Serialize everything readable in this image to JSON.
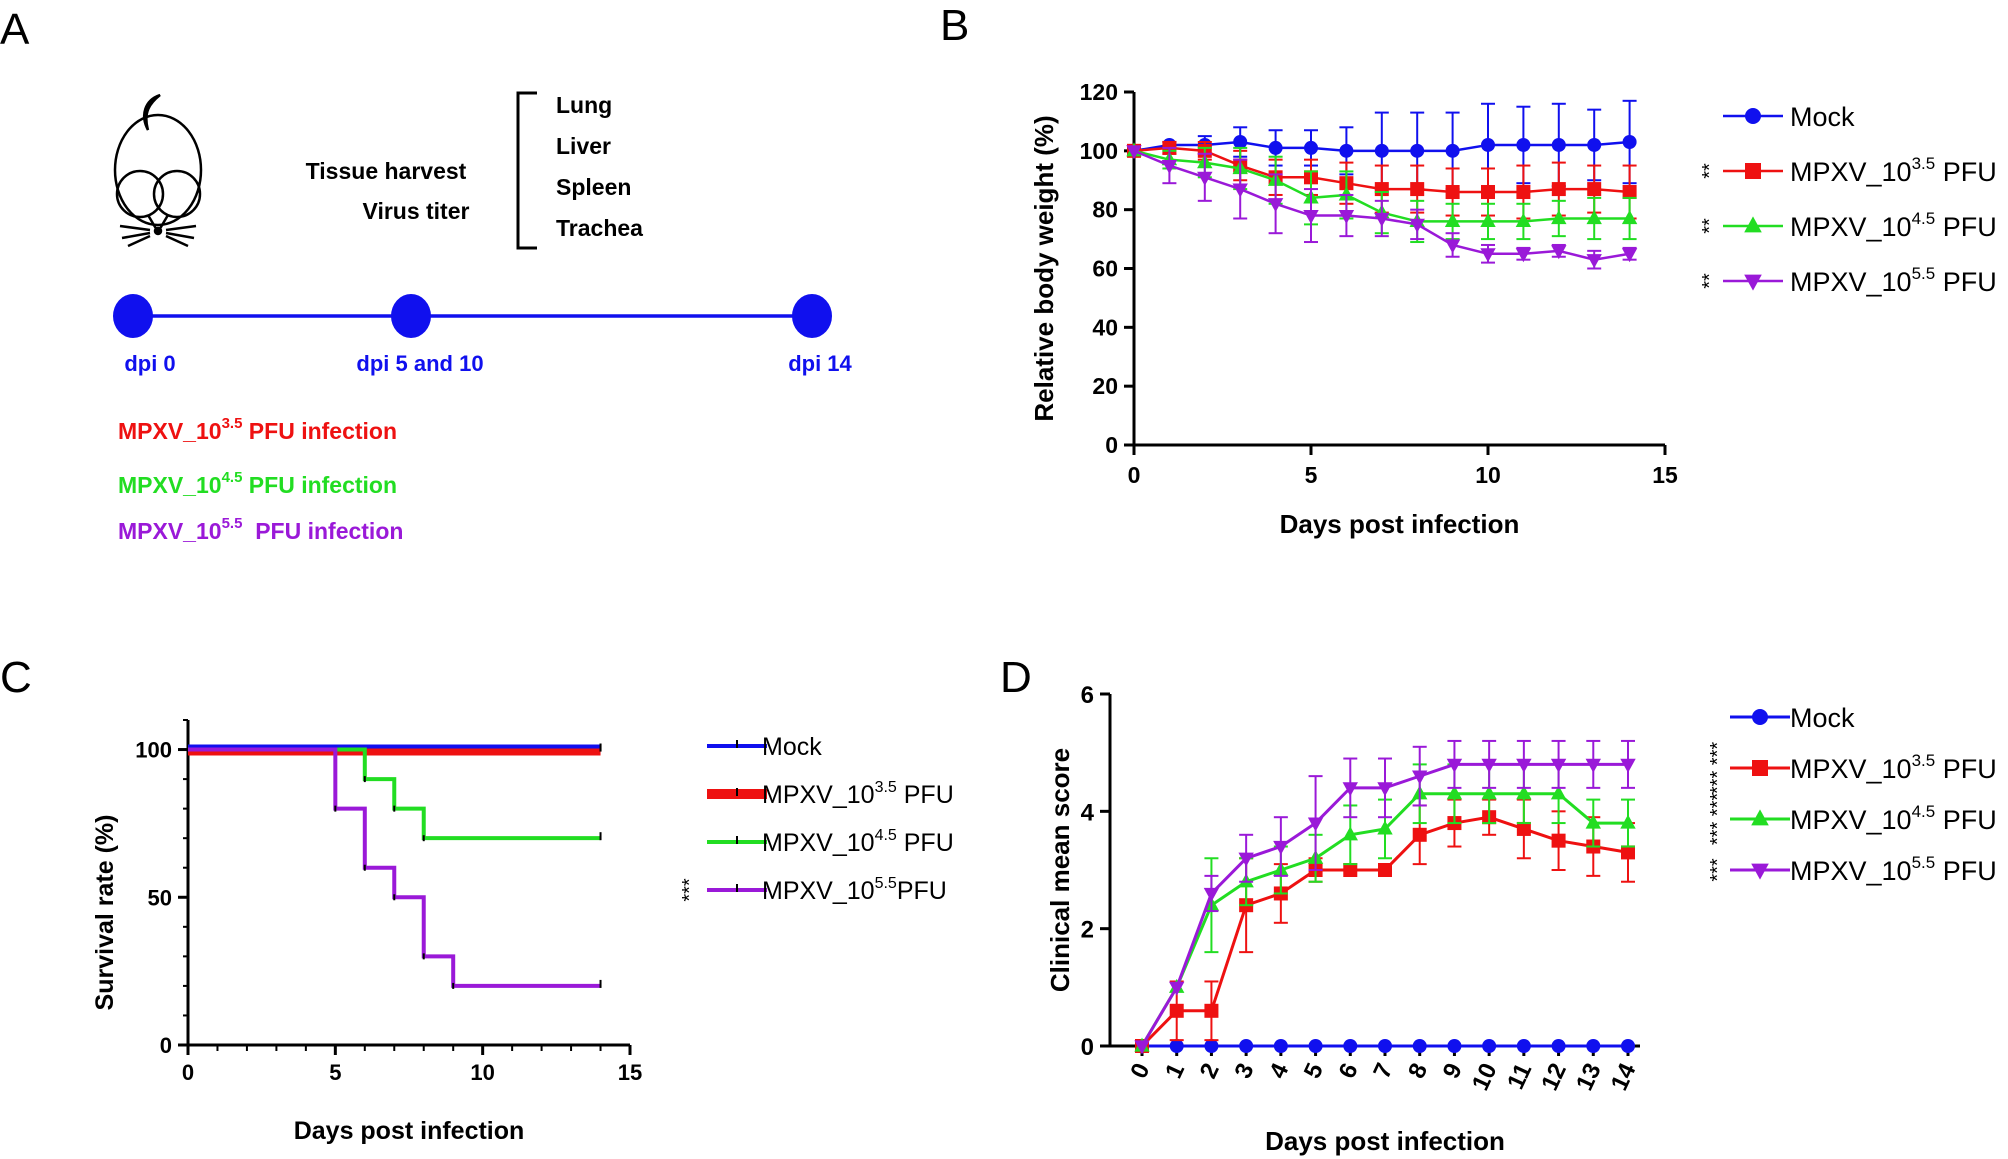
{
  "colors": {
    "mock": "#1010ee",
    "low": "#ee1111",
    "mid": "#22dd22",
    "high": "#9a19d8",
    "black": "#000000"
  },
  "panelA": {
    "letter": "A",
    "harvest_label_1": "Tissue harvest",
    "harvest_label_2": "Virus titer",
    "tissues": [
      "Lung",
      "Liver",
      "Spleen",
      "Trachea"
    ],
    "timepoints": [
      "dpi 0",
      "dpi 5 and 10",
      "dpi 14"
    ],
    "infections": [
      {
        "prefix": "MPXV_10",
        "exp": "3.5",
        "suffix": " PFU infection",
        "color": "#ee1111"
      },
      {
        "prefix": "MPXV_10",
        "exp": "4.5",
        "suffix": " PFU infection",
        "color": "#22dd22"
      },
      {
        "prefix": "MPXV_10",
        "exp": "5.5",
        "suffix": "  PFU infection",
        "color": "#9a19d8"
      }
    ]
  },
  "chart_data": [
    {
      "panel": "B",
      "type": "line",
      "xlabel": "Days post infection",
      "ylabel": "Relative body weight (%)",
      "xlim": [
        0,
        15
      ],
      "ylim": [
        0,
        120
      ],
      "xticks": [
        0,
        5,
        10,
        15
      ],
      "yticks": [
        0,
        20,
        40,
        60,
        80,
        100,
        120
      ],
      "x": [
        0,
        1,
        2,
        3,
        4,
        5,
        6,
        7,
        8,
        9,
        10,
        11,
        12,
        13,
        14
      ],
      "series": [
        {
          "name": "Mock",
          "label_prefix": "Mock",
          "label_exp": "",
          "label_suffix": "",
          "sig": "",
          "color": "#1010ee",
          "marker": "circle",
          "values": [
            100,
            102,
            102,
            103,
            101,
            101,
            100,
            100,
            100,
            100,
            102,
            102,
            102,
            102,
            103
          ],
          "errors": [
            0,
            1,
            3,
            5,
            6,
            6,
            8,
            13,
            13,
            13,
            14,
            13,
            14,
            12,
            14
          ]
        },
        {
          "name": "MPXV_10^3.5 PFU",
          "label_prefix": "MPXV_10",
          "label_exp": "3.5",
          "label_suffix": " PFU",
          "sig": "**",
          "color": "#ee1111",
          "marker": "square",
          "values": [
            100,
            101,
            100,
            95,
            91,
            91,
            89,
            87,
            87,
            86,
            86,
            86,
            87,
            87,
            86
          ],
          "errors": [
            0,
            2,
            3,
            5,
            6,
            6,
            7,
            8,
            8,
            8,
            8,
            9,
            9,
            8,
            9
          ]
        },
        {
          "name": "MPXV_10^4.5 PFU",
          "label_prefix": "MPXV_10",
          "label_exp": "4.5",
          "label_suffix": " PFU",
          "sig": "**",
          "color": "#22dd22",
          "marker": "triangle",
          "values": [
            100,
            97,
            96,
            94,
            90,
            84,
            85,
            79,
            76,
            76,
            76,
            76,
            77,
            77,
            77
          ],
          "errors": [
            0,
            3,
            5,
            7,
            8,
            9,
            8,
            7,
            7,
            6,
            6,
            6,
            6,
            7,
            7
          ]
        },
        {
          "name": "MPXV_10^5.5 PFU",
          "label_prefix": "MPXV_10",
          "label_exp": "5.5",
          "label_suffix": " PFU",
          "sig": "**",
          "color": "#9a19d8",
          "marker": "triangle-down",
          "values": [
            100,
            95,
            91,
            87,
            82,
            78,
            78,
            77,
            75,
            68,
            65,
            65,
            66,
            63,
            65
          ],
          "errors": [
            0,
            6,
            8,
            10,
            10,
            9,
            7,
            6,
            5,
            4,
            3,
            2,
            2,
            3,
            2
          ]
        }
      ]
    },
    {
      "panel": "C",
      "type": "line",
      "subtype": "step",
      "xlabel": "Days post infection",
      "ylabel": "Survival rate (%)",
      "xlim": [
        0,
        15
      ],
      "ylim": [
        0,
        100
      ],
      "xticks": [
        0,
        5,
        10,
        15
      ],
      "yticks": [
        0,
        50,
        100
      ],
      "series": [
        {
          "name": "Mock",
          "label_prefix": "Mock",
          "label_exp": "",
          "label_suffix": "",
          "sig": "",
          "color": "#1010ee",
          "x": [
            0,
            14
          ],
          "values": [
            100,
            100
          ]
        },
        {
          "name": "MPXV_10^3.5 PFU",
          "label_prefix": "MPXV_10",
          "label_exp": "3.5",
          "label_suffix": " PFU",
          "sig": "",
          "color": "#ee1111",
          "x": [
            0,
            14
          ],
          "values": [
            100,
            100
          ]
        },
        {
          "name": "MPXV_10^4.5 PFU",
          "label_prefix": "MPXV_10",
          "label_exp": "4.5",
          "label_suffix": " PFU",
          "sig": "",
          "color": "#22dd22",
          "x": [
            0,
            6,
            7,
            8,
            14
          ],
          "values": [
            100,
            90,
            80,
            70,
            70
          ]
        },
        {
          "name": "MPXV_10^5.5PFU",
          "label_prefix": "MPXV_10",
          "label_exp": "5.5",
          "label_suffix": "PFU",
          "sig": "***",
          "color": "#9a19d8",
          "x": [
            0,
            5,
            6,
            7,
            8,
            9,
            14
          ],
          "values": [
            100,
            80,
            60,
            50,
            30,
            20,
            20
          ]
        }
      ]
    },
    {
      "panel": "D",
      "type": "line",
      "xlabel": "Days post infection",
      "ylabel": "Clinical mean score",
      "xlim": [
        0,
        14
      ],
      "ylim": [
        0,
        6
      ],
      "xticks": [
        0,
        1,
        2,
        3,
        4,
        5,
        6,
        7,
        8,
        9,
        10,
        11,
        12,
        13,
        14
      ],
      "yticks": [
        0,
        2,
        4,
        6
      ],
      "x": [
        0,
        1,
        2,
        3,
        4,
        5,
        6,
        7,
        8,
        9,
        10,
        11,
        12,
        13,
        14
      ],
      "series": [
        {
          "name": "Mock",
          "label_prefix": "Mock",
          "label_exp": "",
          "label_suffix": "",
          "sig": "",
          "color": "#1010ee",
          "marker": "circle",
          "values": [
            0,
            0,
            0,
            0,
            0,
            0,
            0,
            0,
            0,
            0,
            0,
            0,
            0,
            0,
            0
          ],
          "errors": [
            0,
            0,
            0,
            0,
            0,
            0,
            0,
            0,
            0,
            0,
            0,
            0,
            0,
            0,
            0
          ]
        },
        {
          "name": "MPXV_10^3.5 PFU",
          "label_prefix": "MPXV_10",
          "label_exp": "3.5",
          "label_suffix": " PFU",
          "sig": "*** ***",
          "color": "#ee1111",
          "marker": "square",
          "values": [
            0,
            0.6,
            0.6,
            2.4,
            2.6,
            3.0,
            3.0,
            3.0,
            3.6,
            3.8,
            3.9,
            3.7,
            3.5,
            3.4,
            3.3
          ],
          "errors": [
            0,
            0.5,
            0.5,
            0.8,
            0.5,
            0.2,
            0,
            0,
            0.5,
            0.4,
            0.3,
            0.5,
            0.5,
            0.5,
            0.5
          ]
        },
        {
          "name": "MPXV_10^4.5 PFU",
          "label_prefix": "MPXV_10",
          "label_exp": "4.5",
          "label_suffix": " PFU",
          "sig": "*** ***",
          "color": "#22dd22",
          "marker": "triangle",
          "values": [
            0,
            1.0,
            2.4,
            2.8,
            3.0,
            3.2,
            3.6,
            3.7,
            4.3,
            4.3,
            4.3,
            4.3,
            4.3,
            3.8,
            3.8
          ],
          "errors": [
            0,
            0,
            0.8,
            0.4,
            0.4,
            0.4,
            0.5,
            0.5,
            0.5,
            0.5,
            0.5,
            0.5,
            0.5,
            0.4,
            0.4
          ]
        },
        {
          "name": "MPXV_10^5.5 PFU",
          "label_prefix": "MPXV_10",
          "label_exp": "5.5",
          "label_suffix": " PFU",
          "sig": "***",
          "color": "#9a19d8",
          "marker": "triangle-down",
          "values": [
            0,
            1.0,
            2.6,
            3.2,
            3.4,
            3.8,
            4.4,
            4.4,
            4.6,
            4.8,
            4.8,
            4.8,
            4.8,
            4.8,
            4.8
          ],
          "errors": [
            0,
            0,
            0.3,
            0.4,
            0.5,
            0.8,
            0.5,
            0.5,
            0.5,
            0.4,
            0.4,
            0.4,
            0.4,
            0.4,
            0.4
          ]
        }
      ]
    }
  ]
}
